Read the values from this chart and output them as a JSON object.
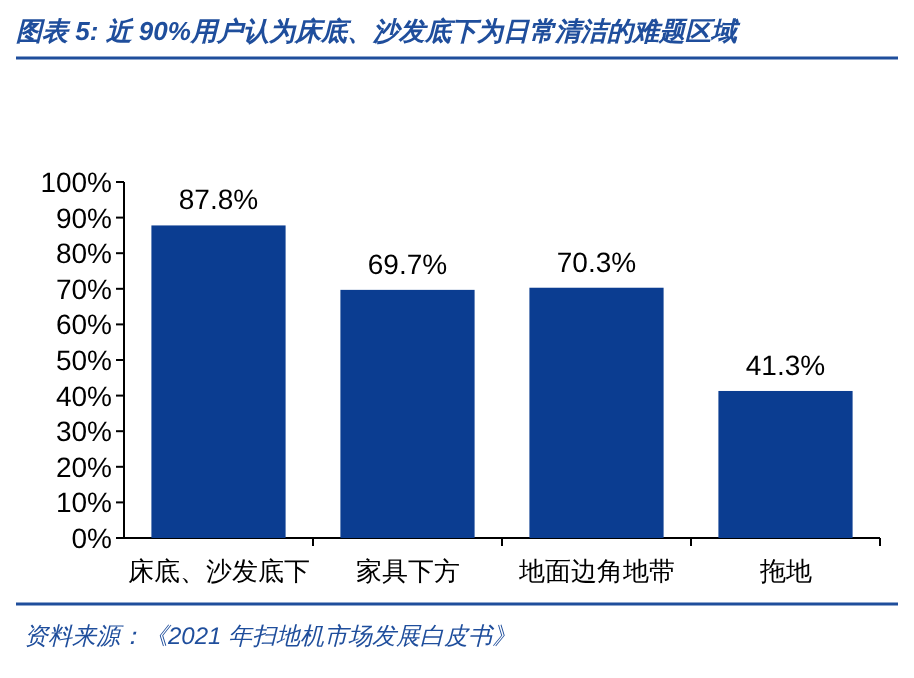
{
  "chart_data": {
    "type": "bar",
    "title": "图表 5:  近 90%用户认为床底、沙发底下为日常清洁的难题区域",
    "categories": [
      "床底、沙发底下",
      "家具下方",
      "地面边角地带",
      "拖地"
    ],
    "values": [
      87.8,
      69.7,
      70.3,
      41.3
    ],
    "value_labels": [
      "87.8%",
      "69.7%",
      "70.3%",
      "41.3%"
    ],
    "color": "#0b3d91",
    "ylim": [
      0,
      100
    ],
    "yticks": [
      {
        "value": 0,
        "label": "0%"
      },
      {
        "value": 10,
        "label": "10%"
      },
      {
        "value": 20,
        "label": "20%"
      },
      {
        "value": 30,
        "label": "30%"
      },
      {
        "value": 40,
        "label": "40%"
      },
      {
        "value": 50,
        "label": "50%"
      },
      {
        "value": 60,
        "label": "60%"
      },
      {
        "value": 70,
        "label": "70%"
      },
      {
        "value": 80,
        "label": "80%"
      },
      {
        "value": 90,
        "label": "90%"
      },
      {
        "value": 100,
        "label": "100%"
      }
    ],
    "grid": false,
    "annotations": [
      "资料来源：《2021 年扫地机市场发展白皮书》"
    ]
  }
}
